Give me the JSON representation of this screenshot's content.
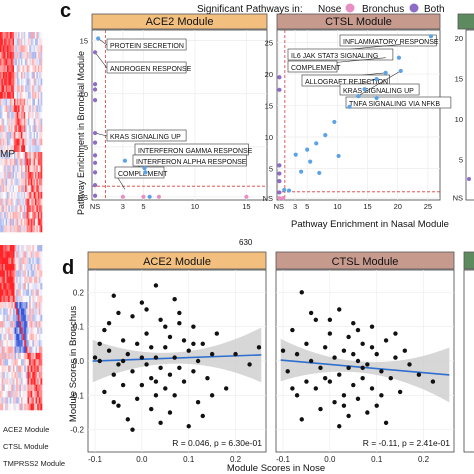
{
  "colors": {
    "nose": "#e78fc3",
    "bronchus": "#8c6cc7",
    "point_blue": "#5ba3e6",
    "ace2_header": "#f3bf7e",
    "ctsl_header": "#c79a8e",
    "third_header": "#5e8a5f",
    "fit_line": "#2e6fcf",
    "ci_band": "#c9c9c9",
    "ref_line": "#d83a3a",
    "heat_red": "#d8292b",
    "heat_blue": "#3b56c8"
  },
  "panel_c": {
    "label": "c",
    "legend_title": "Significant Pathways in:",
    "legend_items": [
      {
        "label": "Nose",
        "color_key": "nose"
      },
      {
        "label": "Bronchus",
        "color_key": "bronchus"
      },
      {
        "label": "Both",
        "color_key": "bronchus"
      }
    ],
    "ylabel": "Pathway Enrichment in Bronchial Module",
    "xlabel": "Pathway Enrichment in Nasal Module",
    "stray_label": "630"
  },
  "panel_d": {
    "label": "d",
    "ylabel": "Module Scores in Bronchus",
    "xlabel": "Module Scores in Nose"
  },
  "heatmap": {
    "label_fragment": "MP",
    "module_labels": [
      "ACE2 Module",
      "CTSL Module",
      "TMPRSS2 Module"
    ]
  },
  "chart_data": [
    {
      "id": "c-ace2",
      "type": "scatter",
      "title": "ACE2 Module",
      "x_ticks": [
        "NS",
        "3",
        "5",
        "10",
        "15"
      ],
      "y_ticks": [
        "NS",
        "5",
        "10",
        "15"
      ],
      "xlim": [
        0,
        17
      ],
      "ylim": [
        0,
        16
      ],
      "threshold": 1.3,
      "series": [
        {
          "name": "Nose",
          "points": [
            [
              3,
              0.3
            ],
            [
              5,
              0.3
            ],
            [
              6.5,
              0.3
            ],
            [
              15,
              0.3
            ]
          ]
        },
        {
          "name": "Bronchus",
          "points": [
            [
              0.3,
              0.4
            ],
            [
              0.3,
              1.4
            ],
            [
              0.3,
              2.6
            ],
            [
              0.3,
              3.5
            ],
            [
              0.3,
              4.2
            ],
            [
              0.3,
              5.4
            ],
            [
              0.3,
              6.3
            ],
            [
              0.3,
              9.4
            ],
            [
              0.3,
              10.4
            ],
            [
              0.3,
              10.9
            ],
            [
              0.3,
              13.9
            ]
          ]
        },
        {
          "name": "Both",
          "points": [
            [
              3.2,
              3.7
            ],
            [
              5.1,
              3.0
            ],
            [
              5.2,
              2.6
            ],
            [
              5.6,
              0.3
            ],
            [
              0.6,
              15.2
            ]
          ]
        }
      ],
      "annotations": [
        {
          "text": "PROTEIN SECRETION",
          "x": 0.6,
          "y": 15.2
        },
        {
          "text": "ANDROGEN RESPONSE",
          "x": 0.3,
          "y": 13.9
        },
        {
          "text": "KRAS SIGNALING UP",
          "x": 0.3,
          "y": 6.3
        },
        {
          "text": "INTERFERON GAMMA RESPONSE",
          "x": 5.1,
          "y": 3.0
        },
        {
          "text": "INTERFERON ALPHA RESPONSE",
          "x": 5.2,
          "y": 2.6
        },
        {
          "text": "COMPLEMENT",
          "x": 3.2,
          "y": 1.0
        }
      ]
    },
    {
      "id": "c-ctsl",
      "type": "scatter",
      "title": "CTSL Module",
      "x_ticks": [
        "NS",
        "3",
        "5",
        "10",
        "15",
        "20",
        "25"
      ],
      "y_ticks": [
        "NS",
        "5",
        "10",
        "15",
        "20",
        "25"
      ],
      "xlim": [
        0,
        27
      ],
      "ylim": [
        0,
        27
      ],
      "threshold": 1.3,
      "series": [
        {
          "name": "Nose",
          "points": [
            [
              0.4,
              0.3
            ],
            [
              1.0,
              0.3
            ]
          ]
        },
        {
          "name": "Bronchus",
          "points": [
            [
              0.4,
              1.2
            ],
            [
              0.4,
              3.0
            ],
            [
              0.4,
              4.2
            ],
            [
              0.4,
              5.5
            ],
            [
              0.4,
              17.5
            ],
            [
              0.4,
              19.5
            ]
          ]
        },
        {
          "name": "Both",
          "points": [
            [
              1.2,
              1.6
            ],
            [
              2.0,
              1.5
            ],
            [
              3.1,
              7.2
            ],
            [
              4.0,
              4.5
            ],
            [
              5.0,
              8.0
            ],
            [
              5.5,
              6.1
            ],
            [
              6.5,
              9.0
            ],
            [
              7.0,
              4.3
            ],
            [
              8.0,
              10.3
            ],
            [
              9.5,
              12.4
            ],
            [
              10.2,
              7.0
            ],
            [
              12.0,
              14.8
            ],
            [
              13.5,
              16.5
            ],
            [
              14.5,
              17.6
            ],
            [
              16.5,
              19.2
            ],
            [
              18.0,
              20.2
            ],
            [
              20.5,
              20.5
            ],
            [
              25.5,
              26.0
            ],
            [
              16.5,
              16.2
            ],
            [
              20.2,
              22.6
            ]
          ]
        }
      ],
      "annotations": [
        {
          "text": "INFLAMMATORY RESPONSE",
          "x": 25.5,
          "y": 26.0
        },
        {
          "text": "IL6 JAK STAT3 SIGNALING",
          "x": 20.5,
          "y": 24.7
        },
        {
          "text": "COMPLEMENT",
          "x": 18.0,
          "y": 22.6
        },
        {
          "text": "ALLOGRAFT REJECTION",
          "x": 18.0,
          "y": 20.2
        },
        {
          "text": "KRAS SIGNALING UP",
          "x": 16.5,
          "y": 19.2
        },
        {
          "text": "TNFA SIGNALING VIA NFKB",
          "x": 20.5,
          "y": 20.5
        }
      ]
    },
    {
      "id": "c-third",
      "type": "scatter",
      "title": "",
      "y_ticks": [
        "NS",
        "5",
        "10",
        "15",
        "20"
      ],
      "ylim": [
        0,
        21
      ],
      "series": [
        {
          "name": "Bronchus",
          "points": [
            [
              0.3,
              2.6
            ]
          ]
        }
      ]
    },
    {
      "id": "d-ace2",
      "type": "scatter",
      "title": "ACE2 Module",
      "x_ticks": [
        "-0.1",
        "0.0",
        "0.1",
        "0.2"
      ],
      "y_ticks": [
        "-0.2",
        "-0.1",
        "0.0",
        "0.1",
        "0.2"
      ],
      "xlim": [
        -0.115,
        0.265
      ],
      "ylim": [
        -0.265,
        0.265
      ],
      "stats_text": "R = 0.046, p = 6.30e-01",
      "fit": {
        "slope": 0.05,
        "intercept": 0.005
      },
      "series": [
        {
          "name": "Scores",
          "points": [
            [
              -0.06,
              0.19
            ],
            [
              0.03,
              0.22
            ],
            [
              0.0,
              0.17
            ],
            [
              -0.05,
              0.14
            ],
            [
              -0.02,
              0.13
            ],
            [
              0.04,
              0.12
            ],
            [
              0.08,
              0.11
            ],
            [
              0.11,
              0.1
            ],
            [
              -0.08,
              0.09
            ],
            [
              0.01,
              0.08
            ],
            [
              0.06,
              0.07
            ],
            [
              -0.04,
              0.06
            ],
            [
              0.09,
              0.06
            ],
            [
              0.13,
              0.05
            ],
            [
              -0.01,
              0.05
            ],
            [
              0.02,
              0.04
            ],
            [
              0.05,
              0.04
            ],
            [
              -0.07,
              0.03
            ],
            [
              0.1,
              0.03
            ],
            [
              0.15,
              0.02
            ],
            [
              -0.03,
              0.02
            ],
            [
              0.0,
              0.01
            ],
            [
              0.03,
              0.01
            ],
            [
              0.07,
              0.01
            ],
            [
              0.12,
              0.0
            ],
            [
              -0.09,
              0.0
            ],
            [
              -0.05,
              -0.01
            ],
            [
              0.01,
              -0.01
            ],
            [
              0.04,
              -0.02
            ],
            [
              0.08,
              -0.02
            ],
            [
              0.11,
              -0.03
            ],
            [
              -0.02,
              -0.03
            ],
            [
              0.06,
              -0.04
            ],
            [
              -0.06,
              -0.04
            ],
            [
              0.02,
              -0.05
            ],
            [
              0.14,
              -0.05
            ],
            [
              0.09,
              -0.06
            ],
            [
              -0.04,
              -0.07
            ],
            [
              0.0,
              -0.07
            ],
            [
              0.05,
              -0.08
            ],
            [
              0.18,
              -0.08
            ],
            [
              -0.08,
              -0.09
            ],
            [
              0.03,
              -0.1
            ],
            [
              0.07,
              -0.1
            ],
            [
              -0.01,
              -0.11
            ],
            [
              0.12,
              -0.12
            ],
            [
              -0.05,
              -0.13
            ],
            [
              0.02,
              -0.14
            ],
            [
              0.06,
              -0.15
            ],
            [
              -0.03,
              -0.17
            ],
            [
              0.04,
              -0.18
            ],
            [
              0.1,
              -0.19
            ],
            [
              -0.07,
              0.11
            ],
            [
              0.16,
              0.08
            ],
            [
              0.2,
              0.02
            ],
            [
              0.25,
              0.04
            ],
            [
              0.23,
              -0.01
            ],
            [
              -0.1,
              0.01
            ],
            [
              0.01,
              0.15
            ],
            [
              0.08,
              0.14
            ],
            [
              -0.02,
              -0.2
            ],
            [
              0.13,
              -0.16
            ],
            [
              0.05,
              0.1
            ],
            [
              -0.06,
              -0.12
            ],
            [
              0.11,
              0.05
            ],
            [
              0.03,
              -0.06
            ],
            [
              -0.09,
              0.05
            ],
            [
              0.15,
              -0.1
            ],
            [
              0.07,
              0.18
            ],
            [
              -0.04,
              0.0
            ]
          ]
        }
      ]
    },
    {
      "id": "d-ctsl",
      "type": "scatter",
      "title": "CTSL Module",
      "x_ticks": [
        "-0.1",
        "0.0",
        "0.1",
        "0.2"
      ],
      "xlim": [
        -0.115,
        0.265
      ],
      "ylim": [
        -0.265,
        0.265
      ],
      "stats_text": "R = -0.11, p = 2.41e-01",
      "fit": {
        "slope": -0.12,
        "intercept": -0.01
      },
      "series": [
        {
          "name": "Scores",
          "points": [
            [
              -0.06,
              0.2
            ],
            [
              0.02,
              0.15
            ],
            [
              -0.03,
              0.12
            ],
            [
              0.05,
              0.11
            ],
            [
              0.09,
              0.1
            ],
            [
              -0.08,
              0.09
            ],
            [
              0.0,
              0.08
            ],
            [
              0.04,
              0.07
            ],
            [
              0.12,
              0.06
            ],
            [
              -0.05,
              0.05
            ],
            [
              0.07,
              0.05
            ],
            [
              -0.01,
              0.04
            ],
            [
              0.03,
              0.03
            ],
            [
              0.1,
              0.02
            ],
            [
              -0.07,
              0.02
            ],
            [
              0.14,
              0.01
            ],
            [
              0.01,
              0.01
            ],
            [
              0.06,
              0.0
            ],
            [
              -0.04,
              0.0
            ],
            [
              0.08,
              -0.01
            ],
            [
              0.17,
              -0.01
            ],
            [
              -0.02,
              -0.02
            ],
            [
              0.04,
              -0.02
            ],
            [
              0.11,
              -0.03
            ],
            [
              -0.09,
              -0.03
            ],
            [
              0.02,
              -0.04
            ],
            [
              0.07,
              -0.05
            ],
            [
              0.13,
              -0.05
            ],
            [
              -0.05,
              -0.06
            ],
            [
              0.0,
              -0.06
            ],
            [
              0.05,
              -0.07
            ],
            [
              0.09,
              -0.08
            ],
            [
              -0.03,
              -0.08
            ],
            [
              0.15,
              -0.09
            ],
            [
              0.03,
              -0.1
            ],
            [
              -0.07,
              -0.1
            ],
            [
              0.06,
              -0.11
            ],
            [
              0.01,
              -0.12
            ],
            [
              0.1,
              -0.13
            ],
            [
              -0.02,
              -0.14
            ],
            [
              0.08,
              -0.15
            ],
            [
              0.04,
              -0.16
            ],
            [
              -0.06,
              -0.17
            ],
            [
              0.12,
              -0.18
            ],
            [
              0.02,
              -0.19
            ],
            [
              0.19,
              -0.04
            ],
            [
              0.22,
              -0.06
            ],
            [
              -0.1,
              0.03
            ],
            [
              0.16,
              0.03
            ],
            [
              0.06,
              0.09
            ],
            [
              -0.04,
              0.14
            ],
            [
              0.11,
              -0.1
            ],
            [
              0.0,
              0.12
            ],
            [
              0.07,
              -0.02
            ],
            [
              -0.08,
              -0.08
            ],
            [
              0.14,
              0.08
            ],
            [
              0.03,
              -0.13
            ],
            [
              0.09,
              0.04
            ],
            [
              -0.01,
              -0.05
            ],
            [
              0.05,
              0.02
            ]
          ]
        }
      ]
    }
  ]
}
